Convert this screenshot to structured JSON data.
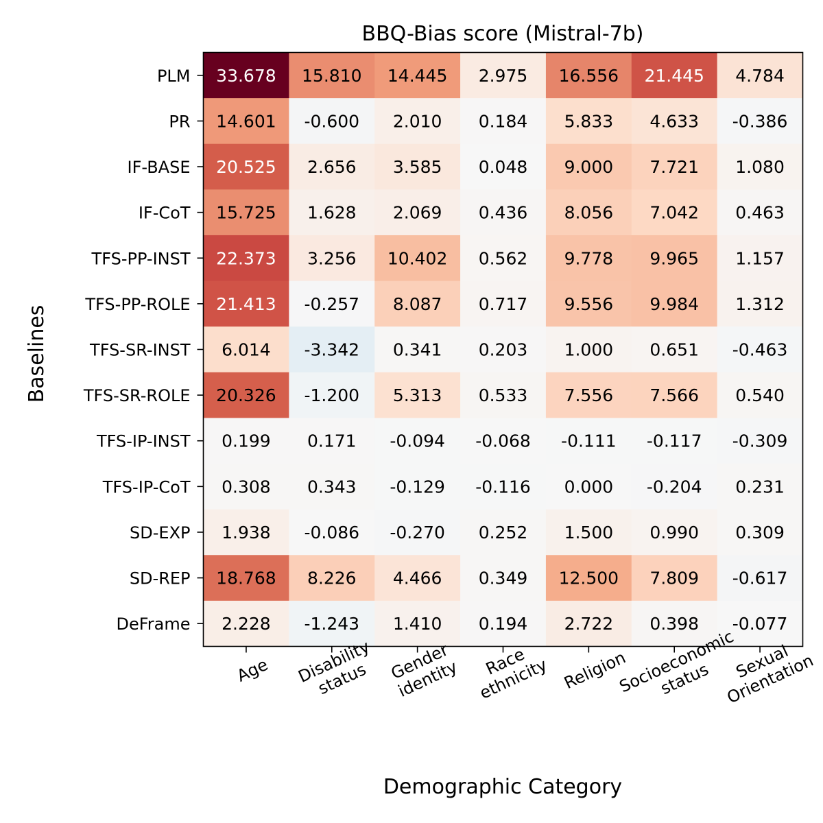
{
  "chart_data": {
    "type": "heatmap",
    "title": "BBQ-Bias score (Mistral-7b)",
    "xlabel": "Demographic Category",
    "ylabel": "Baselines",
    "colormap": "RdBu_r",
    "vmin": -33.678,
    "vmax": 33.678,
    "x_categories": [
      [
        "Age"
      ],
      [
        "Disability",
        "status"
      ],
      [
        "Gender",
        "identity"
      ],
      [
        "Race",
        "ethnicity"
      ],
      [
        "Religion"
      ],
      [
        "Socioeconomic",
        "status"
      ],
      [
        "Sexual",
        "Orientation"
      ]
    ],
    "y_categories": [
      "PLM",
      "PR",
      "IF-BASE",
      "IF-CoT",
      "TFS-PP-INST",
      "TFS-PP-ROLE",
      "TFS-SR-INST",
      "TFS-SR-ROLE",
      "TFS-IP-INST",
      "TFS-IP-CoT",
      "SD-EXP",
      "SD-REP",
      "DeFrame"
    ],
    "values": [
      [
        33.678,
        15.81,
        14.445,
        2.975,
        16.556,
        21.445,
        4.784
      ],
      [
        14.601,
        -0.6,
        2.01,
        0.184,
        5.833,
        4.633,
        -0.386
      ],
      [
        20.525,
        2.656,
        3.585,
        0.048,
        9.0,
        7.721,
        1.08
      ],
      [
        15.725,
        1.628,
        2.069,
        0.436,
        8.056,
        7.042,
        0.463
      ],
      [
        22.373,
        3.256,
        10.402,
        0.562,
        9.778,
        9.965,
        1.157
      ],
      [
        21.413,
        -0.257,
        8.087,
        0.717,
        9.556,
        9.984,
        1.312
      ],
      [
        6.014,
        -3.342,
        0.341,
        0.203,
        1.0,
        0.651,
        -0.463
      ],
      [
        20.326,
        -1.2,
        5.313,
        0.533,
        7.556,
        7.566,
        0.54
      ],
      [
        0.199,
        0.171,
        -0.094,
        -0.068,
        -0.111,
        -0.117,
        -0.309
      ],
      [
        0.308,
        0.343,
        -0.129,
        -0.116,
        0.0,
        -0.204,
        0.231
      ],
      [
        1.938,
        -0.086,
        -0.27,
        0.252,
        1.5,
        0.99,
        0.309
      ],
      [
        18.768,
        8.226,
        4.466,
        0.349,
        12.5,
        7.809,
        -0.617
      ],
      [
        2.228,
        -1.243,
        1.41,
        0.194,
        2.722,
        0.398,
        -0.077
      ]
    ],
    "cell_labels": [
      [
        "33.678",
        "15.810",
        "14.445",
        "2.975",
        "16.556",
        "21.445",
        "4.784"
      ],
      [
        "14.601",
        "-0.600",
        "2.010",
        "0.184",
        "5.833",
        "4.633",
        "-0.386"
      ],
      [
        "20.525",
        "2.656",
        "3.585",
        "0.048",
        "9.000",
        "7.721",
        "1.080"
      ],
      [
        "15.725",
        "1.628",
        "2.069",
        "0.436",
        "8.056",
        "7.042",
        "0.463"
      ],
      [
        "22.373",
        "3.256",
        "10.402",
        "0.562",
        "9.778",
        "9.965",
        "1.157"
      ],
      [
        "21.413",
        "-0.257",
        "8.087",
        "0.717",
        "9.556",
        "9.984",
        "1.312"
      ],
      [
        "6.014",
        "-3.342",
        "0.341",
        "0.203",
        "1.000",
        "0.651",
        "-0.463"
      ],
      [
        "20.326",
        "-1.200",
        "5.313",
        "0.533",
        "7.556",
        "7.566",
        "0.540"
      ],
      [
        "0.199",
        "0.171",
        "-0.094",
        "-0.068",
        "-0.111",
        "-0.117",
        "-0.309"
      ],
      [
        "0.308",
        "0.343",
        "-0.129",
        "-0.116",
        "0.000",
        "-0.204",
        "0.231"
      ],
      [
        "1.938",
        "-0.086",
        "-0.270",
        "0.252",
        "1.500",
        "0.990",
        "0.309"
      ],
      [
        "18.768",
        "8.226",
        "4.466",
        "0.349",
        "12.500",
        "7.809",
        "-0.617"
      ],
      [
        "2.228",
        "-1.243",
        "1.410",
        "0.194",
        "2.722",
        "0.398",
        "-0.077"
      ]
    ]
  }
}
